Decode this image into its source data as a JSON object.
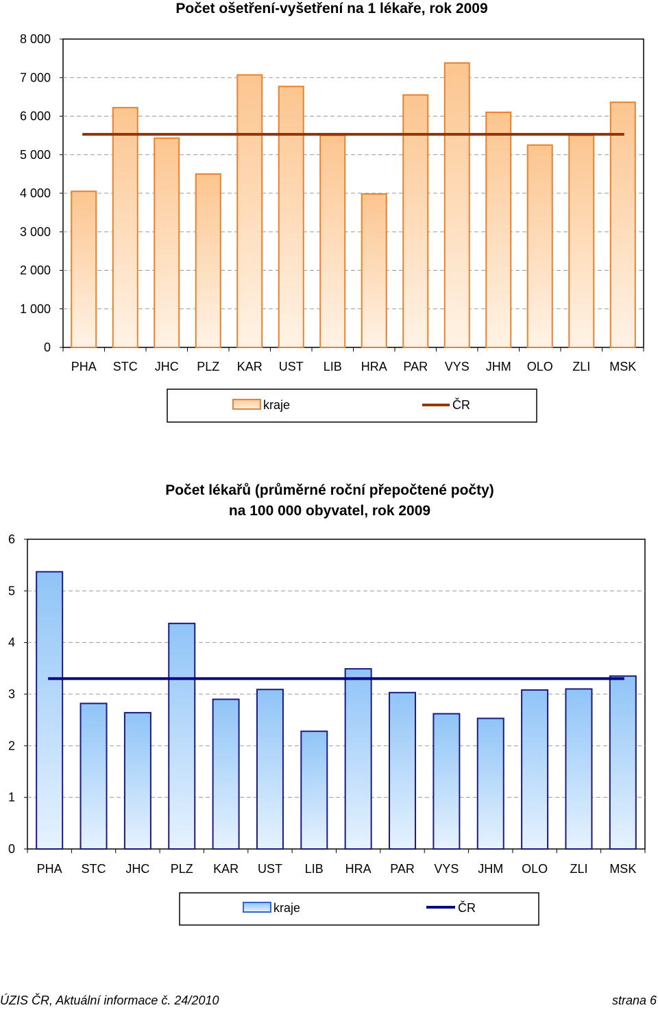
{
  "chart_data": [
    {
      "type": "bar",
      "title": "Počet ošetření-vyšetření na 1 lékaře, rok 2009",
      "categories": [
        "PHA",
        "STC",
        "JHC",
        "PLZ",
        "KAR",
        "UST",
        "LIB",
        "HRA",
        "PAR",
        "VYS",
        "JHM",
        "OLO",
        "ZLI",
        "MSK"
      ],
      "series": [
        {
          "name": "kraje",
          "type": "bar",
          "color": "#e8822e",
          "values": [
            4050,
            6220,
            5430,
            4500,
            7070,
            6770,
            5500,
            3980,
            6550,
            7380,
            6100,
            5250,
            5500,
            6360
          ]
        },
        {
          "name": "ČR",
          "type": "line",
          "color": "#993300",
          "value": 5530
        }
      ],
      "ylim": [
        0,
        8000
      ],
      "yticks": [
        "0",
        "1 000",
        "2 000",
        "3 000",
        "4 000",
        "5 000",
        "6 000",
        "7 000",
        "8 000"
      ],
      "grid": true,
      "legend": "bottom"
    },
    {
      "type": "bar",
      "title": "Počet lékařů (průměrné roční přepočtené počty)",
      "subtitle": "na 100 000 obyvatel, rok 2009",
      "categories": [
        "PHA",
        "STC",
        "JHC",
        "PLZ",
        "KAR",
        "UST",
        "LIB",
        "HRA",
        "PAR",
        "VYS",
        "JHM",
        "OLO",
        "ZLI",
        "MSK"
      ],
      "series": [
        {
          "name": "kraje",
          "type": "bar",
          "color": "#5aa0e0",
          "values": [
            5.37,
            2.82,
            2.64,
            4.37,
            2.9,
            3.09,
            2.28,
            3.49,
            3.03,
            2.62,
            2.53,
            3.08,
            3.1,
            3.35
          ]
        },
        {
          "name": "ČR",
          "type": "line",
          "color": "#000080",
          "value": 3.3
        }
      ],
      "ylim": [
        0,
        6
      ],
      "yticks": [
        "0",
        "1",
        "2",
        "3",
        "4",
        "5",
        "6"
      ],
      "grid": true,
      "legend": "bottom"
    }
  ],
  "footer": {
    "left": "ÚZIS ČR, Aktuální informace č. 24/2010",
    "right": "strana 6"
  }
}
